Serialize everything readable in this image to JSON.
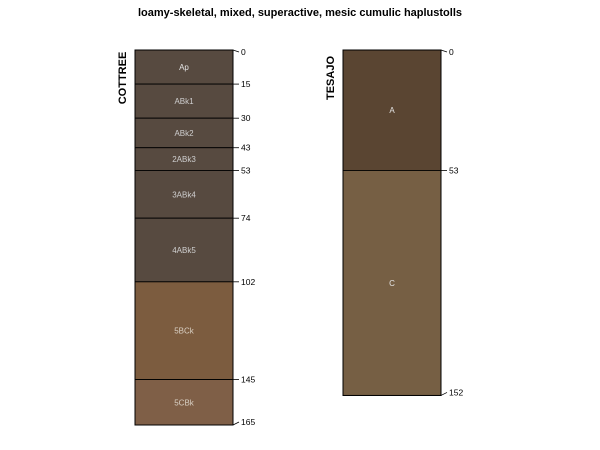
{
  "title": "loamy-skeletal, mixed, superactive, mesic cumulic haplustolls",
  "chart_data": {
    "type": "soil-profile",
    "title": "loamy-skeletal, mixed, superactive, mesic cumulic haplustolls",
    "depth_range": [
      0,
      165
    ],
    "profiles": [
      {
        "name": "COTTREE",
        "horizons": [
          {
            "name": "Ap",
            "top": 0,
            "bottom": 15,
            "color": "#574a40",
            "label_color": "#e6e6e6"
          },
          {
            "name": "ABk1",
            "top": 15,
            "bottom": 30,
            "color": "#574a40",
            "label_color": "#cfcfcf"
          },
          {
            "name": "ABk2",
            "top": 30,
            "bottom": 43,
            "color": "#574a40",
            "label_color": "#cfcfcf"
          },
          {
            "name": "2ABk3",
            "top": 43,
            "bottom": 53,
            "color": "#574a40",
            "label_color": "#cfcfcf"
          },
          {
            "name": "3ABk4",
            "top": 53,
            "bottom": 74,
            "color": "#574a40",
            "label_color": "#cfcfcf"
          },
          {
            "name": "4ABk5",
            "top": 74,
            "bottom": 102,
            "color": "#574a40",
            "label_color": "#cfcfcf"
          },
          {
            "name": "5BCk",
            "top": 102,
            "bottom": 145,
            "color": "#7c5c3f",
            "label_color": "#d9d0c4"
          },
          {
            "name": "5CBk",
            "top": 145,
            "bottom": 165,
            "color": "#7f5f47",
            "label_color": "#d9d0c4"
          }
        ],
        "depth_labels": [
          "0",
          "15",
          "30",
          "43",
          "53",
          "74",
          "102",
          "145",
          "165"
        ]
      },
      {
        "name": "TESAJO",
        "horizons": [
          {
            "name": "A",
            "top": 0,
            "bottom": 53,
            "color": "#5a4532",
            "label_color": "#e6e6e6"
          },
          {
            "name": "C",
            "top": 53,
            "bottom": 152,
            "color": "#765f44",
            "label_color": "#e6e6e6"
          }
        ],
        "depth_labels": [
          "0",
          "53",
          "152"
        ]
      }
    ]
  }
}
